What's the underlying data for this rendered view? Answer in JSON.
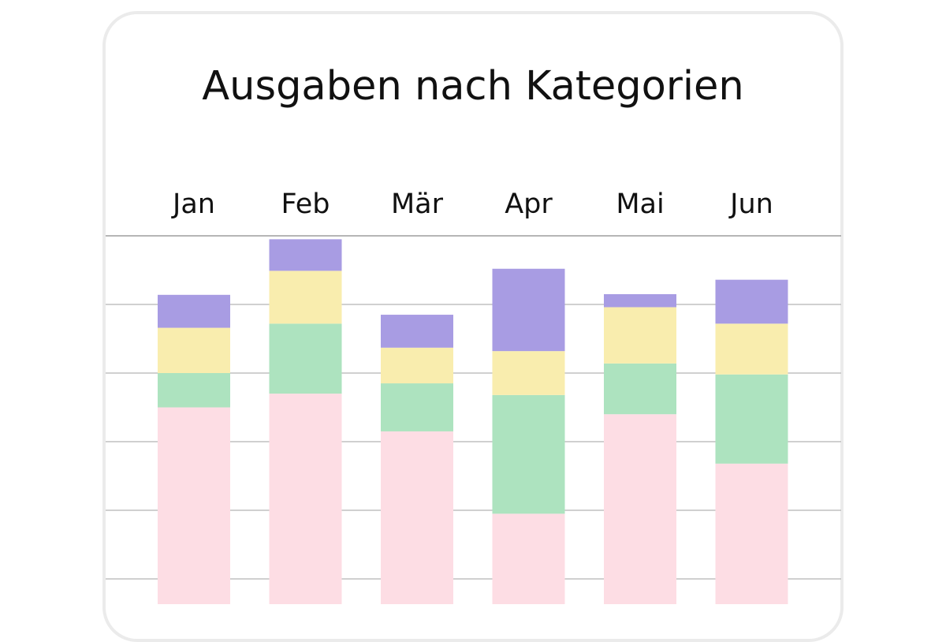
{
  "title": "Ausgaben nach Kategorien",
  "chart_data": {
    "type": "bar",
    "stacked": true,
    "title": "Ausgaben nach Kategorien",
    "xlabel": "",
    "ylabel": "",
    "categories": [
      "Jan",
      "Feb",
      "Mär",
      "Apr",
      "Mai",
      "Jun"
    ],
    "series": [
      {
        "color": "#fddde4",
        "values": [
          2.9,
          3.1,
          2.55,
          1.35,
          2.8,
          2.08
        ]
      },
      {
        "color": "#ade3bf",
        "values": [
          0.5,
          1.02,
          0.7,
          1.73,
          0.74,
          1.3
        ]
      },
      {
        "color": "#f9edae",
        "values": [
          0.66,
          0.77,
          0.52,
          0.64,
          0.82,
          0.74
        ]
      },
      {
        "color": "#a89ce3",
        "values": [
          0.48,
          0.46,
          0.48,
          1.2,
          0.19,
          0.64
        ]
      }
    ],
    "ylim": [
      0,
      5.4
    ],
    "gridline_interval": 1,
    "grid": true,
    "x_labels_position": "top",
    "legend": "none"
  }
}
